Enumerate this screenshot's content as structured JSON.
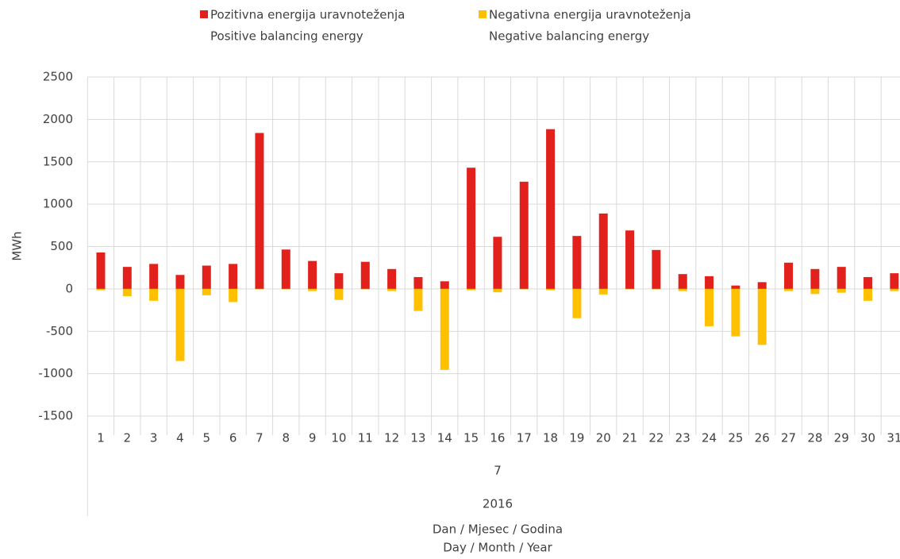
{
  "chart_data": {
    "type": "bar",
    "categories": [
      "1",
      "2",
      "3",
      "4",
      "5",
      "6",
      "7",
      "8",
      "9",
      "10",
      "11",
      "12",
      "13",
      "14",
      "15",
      "16",
      "17",
      "18",
      "19",
      "20",
      "21",
      "22",
      "23",
      "24",
      "25",
      "26",
      "27",
      "28",
      "29",
      "30",
      "31"
    ],
    "month": "7",
    "year": "2016",
    "x_label": [
      "Dan / Mjesec / Godina",
      "Day / Month / Year"
    ],
    "y_label": "MWh",
    "series": [
      {
        "name": [
          "Pozitivna energija uravnoteženja",
          "Positive balancing energy"
        ],
        "color": "#e3211c",
        "values": [
          430,
          260,
          295,
          165,
          275,
          295,
          1840,
          465,
          330,
          185,
          320,
          235,
          140,
          90,
          1430,
          615,
          1265,
          1885,
          625,
          890,
          690,
          460,
          175,
          150,
          40,
          80,
          310,
          235,
          260,
          140,
          185
        ]
      },
      {
        "name": [
          "Negativna energija uravnoteženja",
          "Negative balancing energy"
        ],
        "color": "#ffc000",
        "values": [
          -15,
          -85,
          -140,
          -850,
          -75,
          -155,
          -5,
          -5,
          -25,
          -130,
          -5,
          -25,
          -260,
          -955,
          -15,
          -40,
          -5,
          -15,
          -345,
          -65,
          -5,
          -5,
          -25,
          -440,
          -560,
          -660,
          -25,
          -60,
          -45,
          -140,
          -25
        ]
      }
    ],
    "ylim": [
      -1500,
      2500
    ],
    "yticks": [
      -1500,
      -1000,
      -500,
      0,
      500,
      1000,
      1500,
      2000,
      2500
    ],
    "grid": true,
    "legend": "top"
  }
}
